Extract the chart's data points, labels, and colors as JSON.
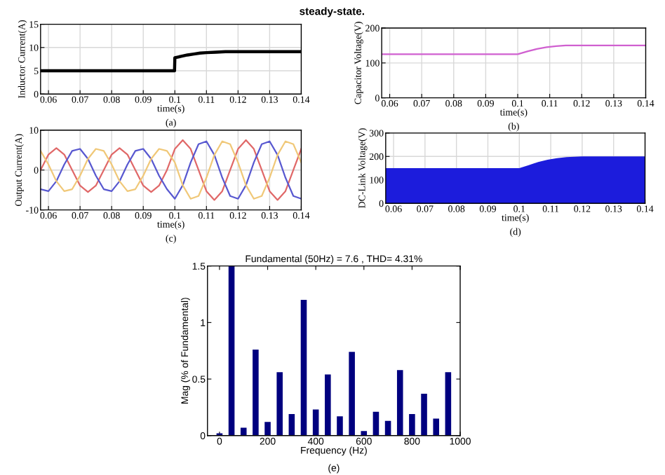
{
  "chart_data": [
    {
      "type": "line",
      "xlabel": "time(s)",
      "ylabel": "Inductor Current(A)",
      "annotations": [
        "(a)",
        "steady-state."
      ],
      "x": [
        0.0575,
        0.07,
        0.08,
        0.09,
        0.0999,
        0.1,
        0.102,
        0.104,
        0.106,
        0.108,
        0.11,
        0.113,
        0.116,
        0.12,
        0.13,
        0.14
      ],
      "series": [
        {
          "color": "#000000",
          "values": [
            5,
            5,
            5,
            5,
            5,
            7.8,
            8.1,
            8.4,
            8.6,
            8.8,
            8.9,
            9,
            9.1,
            9.1,
            9.1,
            9.1
          ]
        }
      ],
      "xlim": [
        0.0575,
        0.14
      ],
      "xticks": [
        0.06,
        0.07,
        0.08,
        0.09,
        0.1,
        0.11,
        0.12,
        0.13,
        0.14
      ],
      "ylim": [
        0,
        15
      ],
      "yticks": [
        0,
        5,
        10,
        15
      ],
      "grid": true
    },
    {
      "type": "line",
      "xlabel": "time(s)",
      "ylabel": "Capacitor Voltage(V)",
      "annotations": [
        "(b)"
      ],
      "x": [
        0.0575,
        0.07,
        0.08,
        0.09,
        0.1,
        0.103,
        0.106,
        0.109,
        0.112,
        0.115,
        0.12,
        0.13,
        0.14
      ],
      "series": [
        {
          "color": "#d060d0",
          "values": [
            125,
            125,
            125,
            125,
            125,
            133,
            140,
            145,
            148,
            150,
            150,
            150,
            150
          ]
        }
      ],
      "xlim": [
        0.0575,
        0.14
      ],
      "xticks": [
        0.06,
        0.07,
        0.08,
        0.09,
        0.1,
        0.11,
        0.12,
        0.13,
        0.14
      ],
      "ylim": [
        0,
        200
      ],
      "yticks": [
        0,
        100,
        200
      ],
      "grid": true
    },
    {
      "type": "line",
      "xlabel": "time(s)",
      "ylabel": "Output Current(A)",
      "annotations": [
        "(c)"
      ],
      "x": [
        0.0575,
        0.06,
        0.0625,
        0.065,
        0.0675,
        0.07,
        0.0725,
        0.075,
        0.0775,
        0.08,
        0.0825,
        0.085,
        0.0875,
        0.09,
        0.0925,
        0.095,
        0.0975,
        0.1,
        0.1025,
        0.105,
        0.1075,
        0.11,
        0.1125,
        0.115,
        0.1175,
        0.12,
        0.1225,
        0.125,
        0.1275,
        0.13,
        0.1325,
        0.135,
        0.1375,
        0.14
      ],
      "series": [
        {
          "color": "#e06868",
          "values": [
            0,
            3.9,
            5.5,
            3.9,
            0,
            -3.9,
            -5.5,
            -3.9,
            0,
            3.9,
            5.5,
            3.9,
            0,
            -3.9,
            -5.5,
            -3.9,
            0,
            5.3,
            7.5,
            5.3,
            0,
            -5.3,
            -7.5,
            -5.3,
            0,
            5.3,
            7.5,
            5.3,
            0,
            -5.3,
            -7.5,
            -5.3,
            0,
            5.3
          ]
        },
        {
          "color": "#5858d0",
          "values": [
            -4.8,
            -5.3,
            -2.8,
            1.4,
            4.8,
            5.3,
            2.8,
            -1.4,
            -4.8,
            -5.3,
            -2.8,
            1.4,
            4.8,
            5.3,
            2.8,
            -1.4,
            -4.8,
            -7.2,
            -3.8,
            1.9,
            6.5,
            7.2,
            3.8,
            -1.9,
            -6.5,
            -7.2,
            -3.8,
            1.9,
            6.5,
            7.2,
            3.8,
            -1.9,
            -6.5,
            -7.2
          ]
        },
        {
          "color": "#f0c878",
          "values": [
            4.8,
            1.4,
            -2.8,
            -5.3,
            -4.8,
            -1.4,
            2.8,
            5.3,
            4.8,
            1.4,
            -2.8,
            -5.3,
            -4.8,
            -1.4,
            2.8,
            5.3,
            4.8,
            1.9,
            -3.8,
            -7.2,
            -6.5,
            -1.9,
            3.8,
            7.2,
            6.5,
            1.9,
            -3.8,
            -7.2,
            -6.5,
            -1.9,
            3.8,
            7.2,
            6.5,
            1.9
          ]
        }
      ],
      "xlim": [
        0.0575,
        0.14
      ],
      "xticks": [
        0.06,
        0.07,
        0.08,
        0.09,
        0.1,
        0.11,
        0.12,
        0.13,
        0.14
      ],
      "ylim": [
        -10,
        10
      ],
      "yticks": [
        -10,
        0,
        10
      ],
      "grid": true
    },
    {
      "type": "area",
      "xlabel": "time(s)",
      "ylabel": "DC-Link Voltage(V)",
      "annotations": [
        "(d)"
      ],
      "x": [
        0.0575,
        0.07,
        0.08,
        0.09,
        0.1,
        0.103,
        0.106,
        0.109,
        0.112,
        0.115,
        0.12,
        0.13,
        0.14
      ],
      "series": [
        {
          "color": "#1c1cdc",
          "values": [
            150,
            150,
            150,
            150,
            150,
            163,
            176,
            186,
            193,
            197,
            200,
            200,
            200
          ]
        }
      ],
      "xlim": [
        0.0575,
        0.14
      ],
      "xticks": [
        0.06,
        0.07,
        0.08,
        0.09,
        0.1,
        0.11,
        0.12,
        0.13,
        0.14
      ],
      "ylim": [
        0,
        300
      ],
      "yticks": [
        0,
        100,
        200,
        300
      ],
      "grid": true
    },
    {
      "type": "bar",
      "title": "Fundamental (50Hz) = 7.6 , THD= 4.31%",
      "xlabel": "Frequency (Hz)",
      "ylabel": "Mag (% of Fundamental)",
      "annotations": [
        "(e)"
      ],
      "x": [
        0,
        50,
        100,
        150,
        200,
        250,
        300,
        350,
        400,
        450,
        500,
        550,
        600,
        650,
        700,
        750,
        800,
        850,
        900,
        950
      ],
      "series": [
        {
          "color": "#00007f",
          "values": [
            0.02,
            1.5,
            0.07,
            0.76,
            0.12,
            0.56,
            0.19,
            1.2,
            0.23,
            0.54,
            0.17,
            0.74,
            0.04,
            0.21,
            0.13,
            0.58,
            0.19,
            0.37,
            0.15,
            0.56
          ]
        }
      ],
      "xlim": [
        -50,
        1000
      ],
      "xticks": [
        0,
        200,
        400,
        600,
        800,
        1000
      ],
      "ylim": [
        0,
        1.5
      ],
      "yticks": [
        0,
        0.5,
        1,
        1.5
      ],
      "grid": false
    }
  ]
}
